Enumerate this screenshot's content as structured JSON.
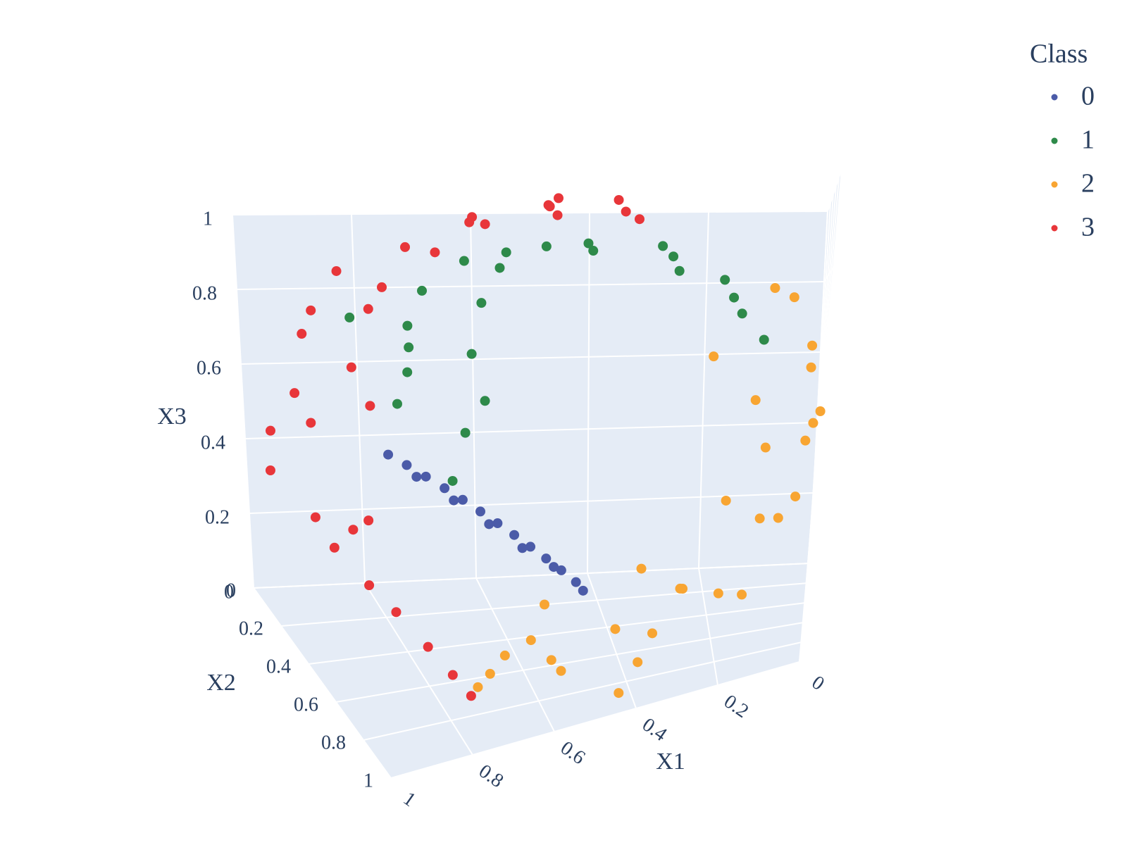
{
  "chart_data": {
    "type": "scatter3d",
    "xaxis_title": "X1",
    "yaxis_title": "X2",
    "zaxis_title": "X3",
    "legend_title": "Class",
    "xlim": [
      0,
      1
    ],
    "ylim": [
      0,
      1
    ],
    "zlim": [
      0,
      1
    ],
    "xticks": [
      0,
      0.2,
      0.4,
      0.6,
      0.8,
      1
    ],
    "yticks": [
      0,
      0.2,
      0.4,
      0.6,
      0.8,
      1
    ],
    "zticks": [
      0,
      0.2,
      0.4,
      0.6,
      0.8,
      1
    ],
    "grid": true,
    "series": [
      {
        "name": "0",
        "color": "#4b5ba8",
        "x": [
          0.76,
          0.74,
          0.72,
          0.7,
          0.68,
          0.66,
          0.64,
          0.62,
          0.6,
          0.58,
          0.56,
          0.54,
          0.73,
          0.69,
          0.65,
          0.61,
          0.57,
          0.53
        ],
        "y": [
          0.05,
          0.12,
          0.2,
          0.28,
          0.36,
          0.44,
          0.52,
          0.6,
          0.68,
          0.76,
          0.84,
          0.92,
          0.16,
          0.32,
          0.48,
          0.64,
          0.8,
          0.96
        ],
        "z": [
          0.36,
          0.35,
          0.34,
          0.33,
          0.32,
          0.31,
          0.3,
          0.29,
          0.28,
          0.27,
          0.26,
          0.25,
          0.33,
          0.31,
          0.29,
          0.27,
          0.26,
          0.24
        ]
      },
      {
        "name": "1",
        "color": "#2e8a4a",
        "x": [
          0.83,
          0.76,
          0.67,
          0.57,
          0.47,
          0.36,
          0.27,
          0.19,
          0.14,
          0.82,
          0.74,
          0.62,
          0.52,
          0.41,
          0.31,
          0.23,
          0.16,
          0.75,
          0.7,
          0.78,
          0.65,
          0.72,
          0.8,
          0.68
        ],
        "y": [
          0.1,
          0.4,
          0.7,
          0.2,
          0.55,
          0.85,
          0.3,
          0.65,
          0.95,
          0.55,
          0.85,
          0.05,
          0.35,
          0.15,
          0.6,
          0.9,
          0.45,
          0.2,
          0.5,
          0.75,
          0.3,
          0.05,
          0.35,
          0.6
        ],
        "z": [
          0.73,
          0.81,
          0.86,
          0.89,
          0.9,
          0.88,
          0.83,
          0.76,
          0.67,
          0.7,
          0.8,
          0.87,
          0.9,
          0.89,
          0.86,
          0.8,
          0.72,
          0.6,
          0.5,
          0.45,
          0.65,
          0.7,
          0.55,
          0.58
        ]
      },
      {
        "name": "2",
        "color": "#f8a532",
        "x": [
          0.07,
          0.02,
          0.0,
          0.02,
          0.07,
          0.15,
          0.25,
          0.37,
          0.5,
          0.63,
          0.75,
          0.09,
          0.03,
          0.01,
          0.04,
          0.1,
          0.19,
          0.31,
          0.43,
          0.56,
          0.69,
          0.15,
          0.2,
          0.3,
          0.45,
          0.25,
          0.6,
          0.12,
          0.35,
          0.55
        ],
        "y": [
          0.7,
          0.35,
          0.85,
          0.15,
          0.6,
          0.9,
          0.4,
          0.75,
          0.2,
          0.55,
          0.85,
          0.2,
          0.95,
          0.5,
          0.8,
          0.3,
          0.65,
          0.1,
          0.9,
          0.45,
          0.7,
          0.95,
          0.9,
          0.95,
          0.95,
          0.95,
          0.95,
          0.95,
          0.85,
          0.8
        ],
        "z": [
          0.75,
          0.63,
          0.5,
          0.37,
          0.25,
          0.15,
          0.07,
          0.02,
          0.0,
          0.02,
          0.07,
          0.78,
          0.6,
          0.45,
          0.32,
          0.2,
          0.11,
          0.04,
          0.01,
          0.01,
          0.04,
          0.55,
          0.35,
          0.2,
          0.15,
          0.65,
          0.12,
          0.45,
          0.1,
          0.05
        ]
      },
      {
        "name": "3",
        "color": "#e8363a",
        "x": [
          0.79,
          0.85,
          0.91,
          0.95,
          0.98,
          0.99,
          0.99,
          0.98,
          0.95,
          0.91,
          0.85,
          0.79,
          0.71,
          0.63,
          0.54,
          0.46,
          0.37,
          0.82,
          0.88,
          0.94,
          0.97,
          0.99,
          0.98,
          0.96,
          0.92,
          0.87,
          0.8,
          0.68,
          0.58,
          0.5,
          0.42,
          0.33
        ],
        "y": [
          0.95,
          0.8,
          0.55,
          0.3,
          0.7,
          0.15,
          0.45,
          0.85,
          0.25,
          0.6,
          0.1,
          0.4,
          0.75,
          0.2,
          0.5,
          0.05,
          0.3,
          0.9,
          0.65,
          0.4,
          0.05,
          0.85,
          0.3,
          0.65,
          0.2,
          0.55,
          0.7,
          0.45,
          0.85,
          0.25,
          0.6,
          0.15
        ],
        "z": [
          0.09,
          0.15,
          0.21,
          0.29,
          0.37,
          0.46,
          0.54,
          0.63,
          0.71,
          0.79,
          0.85,
          0.91,
          0.95,
          0.98,
          0.99,
          0.99,
          0.98,
          0.12,
          0.18,
          0.25,
          0.33,
          0.42,
          0.58,
          0.68,
          0.76,
          0.83,
          0.9,
          0.96,
          0.99,
          1,
          0.99,
          0.97
        ]
      }
    ]
  }
}
